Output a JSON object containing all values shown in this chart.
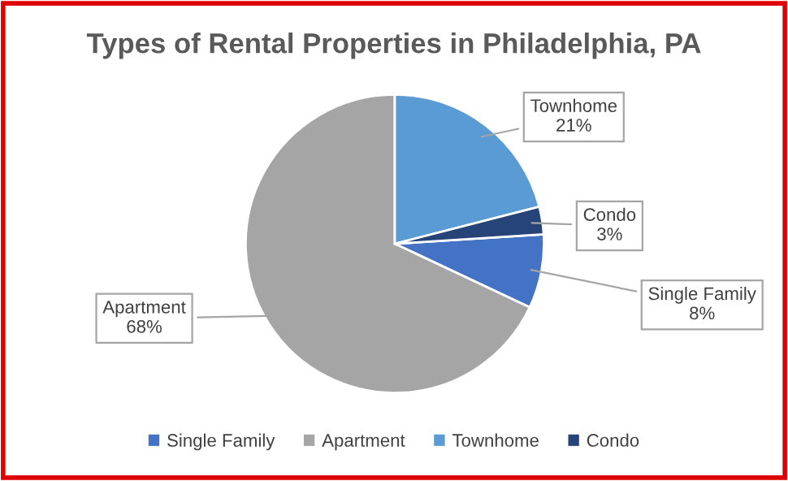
{
  "chart_data": {
    "type": "pie",
    "title": "Types of Rental Properties in Philadelphia, PA",
    "categories": [
      "Single Family",
      "Apartment",
      "Townhome",
      "Condo"
    ],
    "values": [
      8,
      68,
      21,
      3
    ],
    "colors": [
      "#4472c4",
      "#a5a5a5",
      "#5b9bd5",
      "#264478"
    ],
    "value_labels": [
      "8%",
      "68%",
      "21%",
      "3%"
    ],
    "legend": "bottom"
  }
}
